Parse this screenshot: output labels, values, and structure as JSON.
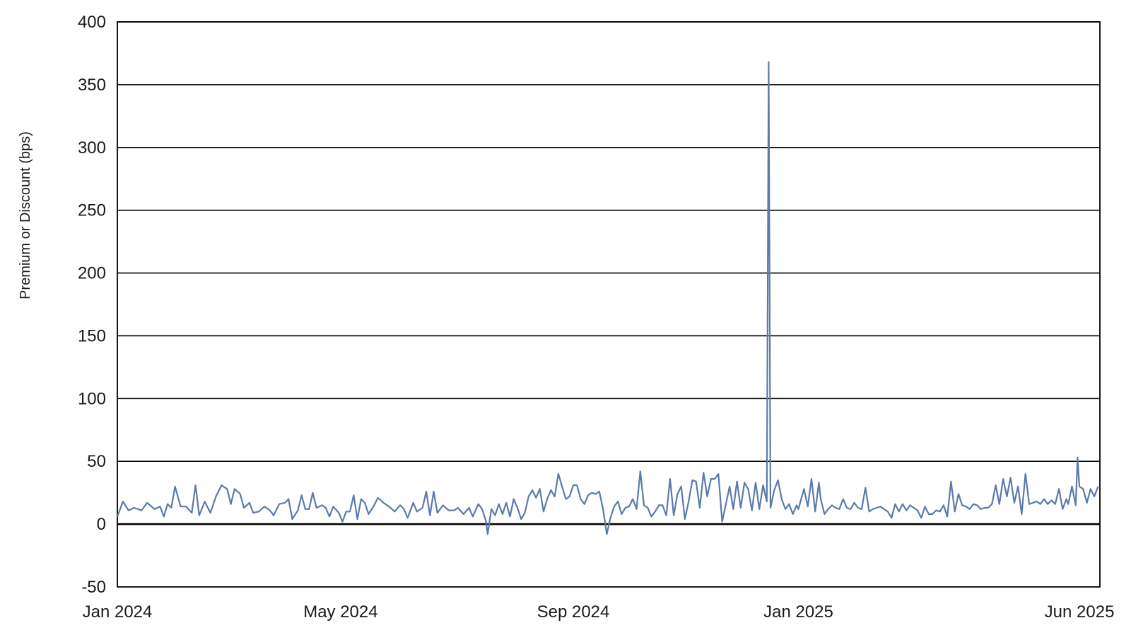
{
  "chart_data": {
    "type": "line",
    "title": "",
    "xlabel": "",
    "ylabel": "Premium or Discount (bps)",
    "ylim": [
      -50,
      400
    ],
    "yticks": [
      -50,
      0,
      50,
      100,
      150,
      200,
      250,
      300,
      350,
      400
    ],
    "xlim": [
      "2024-01-02",
      "2025-06-13"
    ],
    "xticks": [
      {
        "date": "2024-01-02",
        "label": "Jan 2024"
      },
      {
        "date": "2024-05-01",
        "label": "May 2024"
      },
      {
        "date": "2024-09-03",
        "label": "Sep 2024"
      },
      {
        "date": "2025-01-02",
        "label": "Jan 2025"
      },
      {
        "date": "2025-06-02",
        "label": "Jun 2025"
      }
    ],
    "grid": true,
    "line_color": "#5b7aab",
    "series": [
      {
        "points": [
          [
            "2024-01-02",
            6
          ],
          [
            "2024-01-05",
            18
          ],
          [
            "2024-01-08",
            11
          ],
          [
            "2024-01-11",
            13
          ],
          [
            "2024-01-15",
            11
          ],
          [
            "2024-01-18",
            17
          ],
          [
            "2024-01-22",
            12
          ],
          [
            "2024-01-25",
            14
          ],
          [
            "2024-01-27",
            6
          ],
          [
            "2024-01-29",
            16
          ],
          [
            "2024-01-31",
            13
          ],
          [
            "2024-02-02",
            30
          ],
          [
            "2024-02-05",
            14
          ],
          [
            "2024-02-08",
            14
          ],
          [
            "2024-02-11",
            9
          ],
          [
            "2024-02-13",
            31
          ],
          [
            "2024-02-15",
            7
          ],
          [
            "2024-02-18",
            18
          ],
          [
            "2024-02-21",
            9
          ],
          [
            "2024-02-24",
            22
          ],
          [
            "2024-02-27",
            31
          ],
          [
            "2024-03-01",
            28
          ],
          [
            "2024-03-03",
            16
          ],
          [
            "2024-03-05",
            28
          ],
          [
            "2024-03-08",
            24
          ],
          [
            "2024-03-10",
            13
          ],
          [
            "2024-03-13",
            17
          ],
          [
            "2024-03-15",
            9
          ],
          [
            "2024-03-18",
            10
          ],
          [
            "2024-03-21",
            14
          ],
          [
            "2024-03-24",
            11
          ],
          [
            "2024-03-26",
            7
          ],
          [
            "2024-03-29",
            16
          ],
          [
            "2024-04-01",
            17
          ],
          [
            "2024-04-03",
            20
          ],
          [
            "2024-04-05",
            4
          ],
          [
            "2024-04-08",
            11
          ],
          [
            "2024-04-10",
            23
          ],
          [
            "2024-04-12",
            12
          ],
          [
            "2024-04-14",
            12
          ],
          [
            "2024-04-16",
            25
          ],
          [
            "2024-04-18",
            13
          ],
          [
            "2024-04-21",
            15
          ],
          [
            "2024-04-23",
            13
          ],
          [
            "2024-04-25",
            6
          ],
          [
            "2024-04-27",
            14
          ],
          [
            "2024-04-30",
            9
          ],
          [
            "2024-05-02",
            2
          ],
          [
            "2024-05-04",
            10
          ],
          [
            "2024-05-06",
            10
          ],
          [
            "2024-05-08",
            23
          ],
          [
            "2024-05-10",
            4
          ],
          [
            "2024-05-12",
            20
          ],
          [
            "2024-05-14",
            17
          ],
          [
            "2024-05-16",
            8
          ],
          [
            "2024-05-19",
            15
          ],
          [
            "2024-05-21",
            21
          ],
          [
            "2024-05-24",
            17
          ],
          [
            "2024-05-27",
            14
          ],
          [
            "2024-05-30",
            10
          ],
          [
            "2024-06-02",
            15
          ],
          [
            "2024-06-04",
            12
          ],
          [
            "2024-06-06",
            5
          ],
          [
            "2024-06-09",
            17
          ],
          [
            "2024-06-11",
            10
          ],
          [
            "2024-06-14",
            13
          ],
          [
            "2024-06-16",
            26
          ],
          [
            "2024-06-18",
            7
          ],
          [
            "2024-06-20",
            26
          ],
          [
            "2024-06-22",
            9
          ],
          [
            "2024-06-25",
            15
          ],
          [
            "2024-06-28",
            11
          ],
          [
            "2024-07-01",
            11
          ],
          [
            "2024-07-03",
            13
          ],
          [
            "2024-07-06",
            8
          ],
          [
            "2024-07-09",
            13
          ],
          [
            "2024-07-11",
            6
          ],
          [
            "2024-07-14",
            16
          ],
          [
            "2024-07-16",
            12
          ],
          [
            "2024-07-18",
            3
          ],
          [
            "2024-07-19",
            -8
          ],
          [
            "2024-07-21",
            12
          ],
          [
            "2024-07-23",
            7
          ],
          [
            "2024-07-25",
            16
          ],
          [
            "2024-07-27",
            8
          ],
          [
            "2024-07-29",
            17
          ],
          [
            "2024-07-31",
            6
          ],
          [
            "2024-08-02",
            20
          ],
          [
            "2024-08-04",
            13
          ],
          [
            "2024-08-06",
            4
          ],
          [
            "2024-08-08",
            9
          ],
          [
            "2024-08-10",
            22
          ],
          [
            "2024-08-12",
            27
          ],
          [
            "2024-08-14",
            21
          ],
          [
            "2024-08-16",
            28
          ],
          [
            "2024-08-18",
            10
          ],
          [
            "2024-08-20",
            20
          ],
          [
            "2024-08-22",
            27
          ],
          [
            "2024-08-24",
            22
          ],
          [
            "2024-08-26",
            40
          ],
          [
            "2024-08-28",
            30
          ],
          [
            "2024-08-30",
            20
          ],
          [
            "2024-09-01",
            22
          ],
          [
            "2024-09-03",
            31
          ],
          [
            "2024-09-05",
            31
          ],
          [
            "2024-09-07",
            20
          ],
          [
            "2024-09-09",
            16
          ],
          [
            "2024-09-11",
            23
          ],
          [
            "2024-09-13",
            25
          ],
          [
            "2024-09-15",
            24
          ],
          [
            "2024-09-17",
            26
          ],
          [
            "2024-09-19",
            12
          ],
          [
            "2024-09-21",
            -8
          ],
          [
            "2024-09-23",
            5
          ],
          [
            "2024-09-25",
            14
          ],
          [
            "2024-09-27",
            18
          ],
          [
            "2024-09-29",
            8
          ],
          [
            "2024-10-01",
            13
          ],
          [
            "2024-10-03",
            14
          ],
          [
            "2024-10-05",
            20
          ],
          [
            "2024-10-07",
            12
          ],
          [
            "2024-10-09",
            42
          ],
          [
            "2024-10-11",
            15
          ],
          [
            "2024-10-13",
            13
          ],
          [
            "2024-10-15",
            6
          ],
          [
            "2024-10-17",
            10
          ],
          [
            "2024-10-19",
            15
          ],
          [
            "2024-10-21",
            15
          ],
          [
            "2024-10-23",
            7
          ],
          [
            "2024-10-25",
            36
          ],
          [
            "2024-10-27",
            7
          ],
          [
            "2024-10-29",
            24
          ],
          [
            "2024-10-31",
            30
          ],
          [
            "2024-11-02",
            4
          ],
          [
            "2024-11-04",
            18
          ],
          [
            "2024-11-06",
            35
          ],
          [
            "2024-11-08",
            34
          ],
          [
            "2024-11-10",
            13
          ],
          [
            "2024-11-12",
            41
          ],
          [
            "2024-11-14",
            22
          ],
          [
            "2024-11-16",
            36
          ],
          [
            "2024-11-18",
            36
          ],
          [
            "2024-11-20",
            40
          ],
          [
            "2024-11-22",
            2
          ],
          [
            "2024-11-24",
            16
          ],
          [
            "2024-11-26",
            30
          ],
          [
            "2024-11-28",
            12
          ],
          [
            "2024-11-30",
            34
          ],
          [
            "2024-12-02",
            13
          ],
          [
            "2024-12-04",
            33
          ],
          [
            "2024-12-06",
            28
          ],
          [
            "2024-12-08",
            11
          ],
          [
            "2024-12-10",
            33
          ],
          [
            "2024-12-12",
            12
          ],
          [
            "2024-12-14",
            31
          ],
          [
            "2024-12-16",
            18
          ],
          [
            "2024-12-17",
            368
          ],
          [
            "2024-12-18",
            13
          ],
          [
            "2024-12-20",
            27
          ],
          [
            "2024-12-22",
            35
          ],
          [
            "2024-12-24",
            20
          ],
          [
            "2024-12-26",
            12
          ],
          [
            "2024-12-28",
            16
          ],
          [
            "2024-12-30",
            8
          ],
          [
            "2025-01-01",
            15
          ],
          [
            "2025-01-02",
            12
          ],
          [
            "2025-01-05",
            28
          ],
          [
            "2025-01-07",
            14
          ],
          [
            "2025-01-09",
            36
          ],
          [
            "2025-01-11",
            10
          ],
          [
            "2025-01-13",
            33
          ],
          [
            "2025-01-14",
            20
          ],
          [
            "2025-01-16",
            8
          ],
          [
            "2025-01-18",
            12
          ],
          [
            "2025-01-20",
            15
          ],
          [
            "2025-01-22",
            13
          ],
          [
            "2025-01-24",
            12
          ],
          [
            "2025-01-26",
            20
          ],
          [
            "2025-01-28",
            13
          ],
          [
            "2025-01-30",
            12
          ],
          [
            "2025-02-01",
            17
          ],
          [
            "2025-02-03",
            13
          ],
          [
            "2025-02-05",
            12
          ],
          [
            "2025-02-07",
            29
          ],
          [
            "2025-02-09",
            10
          ],
          [
            "2025-02-11",
            12
          ],
          [
            "2025-02-13",
            13
          ],
          [
            "2025-02-15",
            14
          ],
          [
            "2025-02-17",
            12
          ],
          [
            "2025-02-19",
            10
          ],
          [
            "2025-02-21",
            5
          ],
          [
            "2025-02-23",
            16
          ],
          [
            "2025-02-25",
            10
          ],
          [
            "2025-02-27",
            16
          ],
          [
            "2025-03-01",
            11
          ],
          [
            "2025-03-03",
            15
          ],
          [
            "2025-03-05",
            13
          ],
          [
            "2025-03-07",
            11
          ],
          [
            "2025-03-09",
            5
          ],
          [
            "2025-03-11",
            14
          ],
          [
            "2025-03-13",
            8
          ],
          [
            "2025-03-15",
            8
          ],
          [
            "2025-03-17",
            11
          ],
          [
            "2025-03-19",
            10
          ],
          [
            "2025-03-21",
            15
          ],
          [
            "2025-03-23",
            6
          ],
          [
            "2025-03-25",
            34
          ],
          [
            "2025-03-27",
            10
          ],
          [
            "2025-03-29",
            24
          ],
          [
            "2025-03-31",
            15
          ],
          [
            "2025-04-02",
            14
          ],
          [
            "2025-04-04",
            12
          ],
          [
            "2025-04-06",
            16
          ],
          [
            "2025-04-08",
            15
          ],
          [
            "2025-04-10",
            12
          ],
          [
            "2025-04-12",
            13
          ],
          [
            "2025-04-14",
            13
          ],
          [
            "2025-04-16",
            16
          ],
          [
            "2025-04-18",
            31
          ],
          [
            "2025-04-20",
            16
          ],
          [
            "2025-04-22",
            36
          ],
          [
            "2025-04-24",
            22
          ],
          [
            "2025-04-26",
            37
          ],
          [
            "2025-04-28",
            17
          ],
          [
            "2025-04-30",
            30
          ],
          [
            "2025-05-02",
            8
          ],
          [
            "2025-05-04",
            40
          ],
          [
            "2025-05-06",
            16
          ],
          [
            "2025-05-08",
            17
          ],
          [
            "2025-05-10",
            18
          ],
          [
            "2025-05-12",
            16
          ],
          [
            "2025-05-14",
            20
          ],
          [
            "2025-05-16",
            16
          ],
          [
            "2025-05-18",
            19
          ],
          [
            "2025-05-20",
            16
          ],
          [
            "2025-05-22",
            28
          ],
          [
            "2025-05-24",
            12
          ],
          [
            "2025-05-26",
            20
          ],
          [
            "2025-05-27",
            16
          ],
          [
            "2025-05-29",
            30
          ],
          [
            "2025-05-31",
            15
          ],
          [
            "2025-06-01",
            53
          ],
          [
            "2025-06-02",
            30
          ],
          [
            "2025-06-04",
            28
          ],
          [
            "2025-06-06",
            17
          ],
          [
            "2025-06-08",
            28
          ],
          [
            "2025-06-10",
            22
          ],
          [
            "2025-06-12",
            30
          ]
        ]
      }
    ]
  }
}
